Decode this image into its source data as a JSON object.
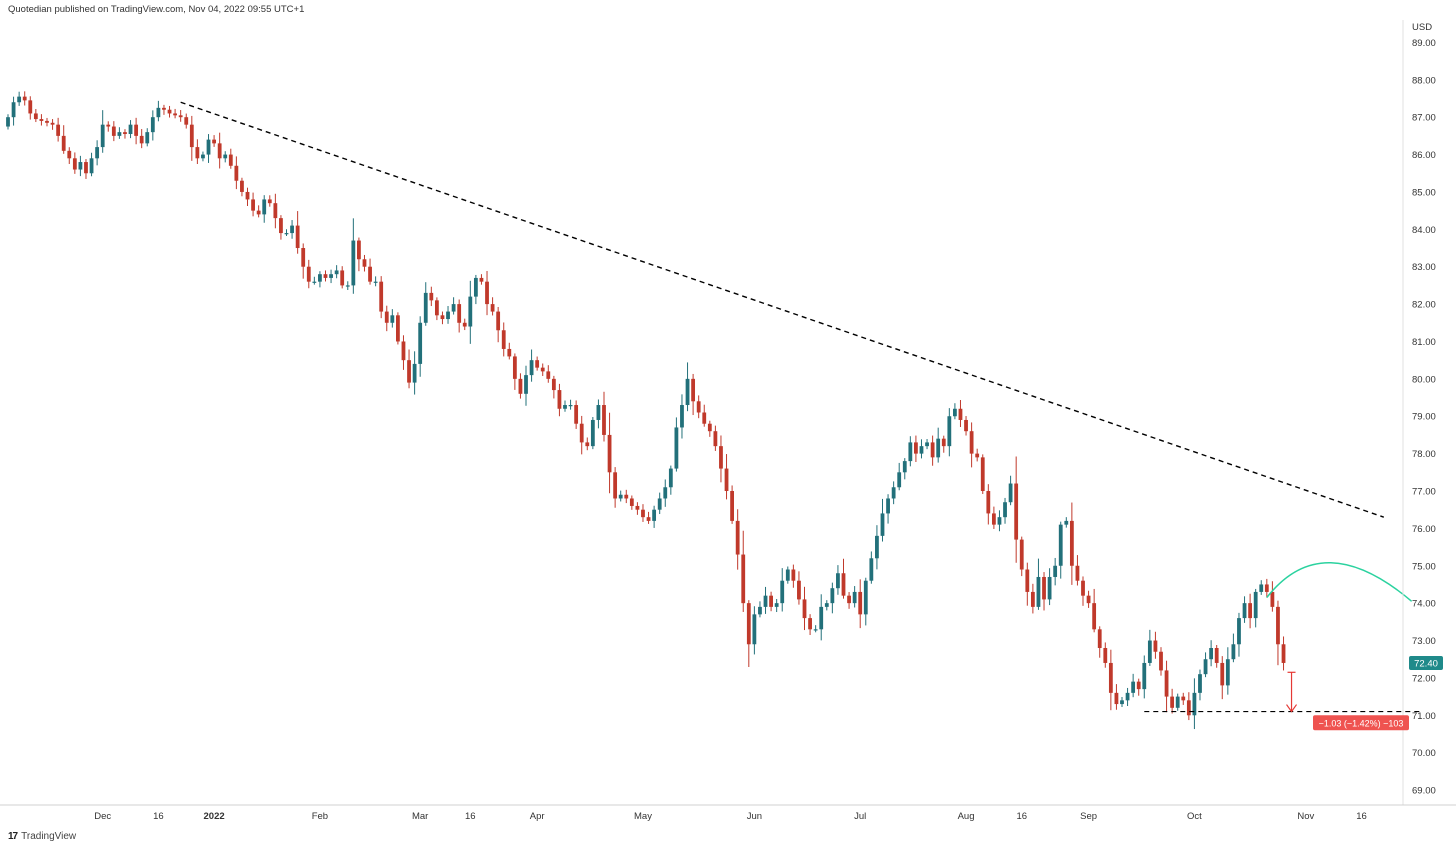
{
  "header": {
    "text": "Quotedian published on TradingView.com, Nov 04, 2022 09:55 UTC+1"
  },
  "brand": {
    "logo": "17",
    "label": "TradingView"
  },
  "colors": {
    "up": "#22707a",
    "down": "#c0392b",
    "trendline": "#000000",
    "arc": "#2bd29f",
    "last_price_bg": "#1f8a8a",
    "change_bg": "#ef5350",
    "arrow": "#e53935"
  },
  "chart_data": {
    "type": "candlestick",
    "currency_label": "USD",
    "ylim": [
      68.6,
      89.6
    ],
    "y_ticks": [
      {
        "value": 89.0,
        "label": "89.00"
      },
      {
        "value": 88.0,
        "label": "88.00"
      },
      {
        "value": 87.0,
        "label": "87.00"
      },
      {
        "value": 86.0,
        "label": "86.00"
      },
      {
        "value": 85.0,
        "label": "85.00"
      },
      {
        "value": 84.0,
        "label": "84.00"
      },
      {
        "value": 83.0,
        "label": "83.00"
      },
      {
        "value": 82.0,
        "label": "82.00"
      },
      {
        "value": 81.0,
        "label": "81.00"
      },
      {
        "value": 80.0,
        "label": "80.00"
      },
      {
        "value": 79.0,
        "label": "79.00"
      },
      {
        "value": 78.0,
        "label": "78.00"
      },
      {
        "value": 77.0,
        "label": "77.00"
      },
      {
        "value": 76.0,
        "label": "76.00"
      },
      {
        "value": 75.0,
        "label": "75.00"
      },
      {
        "value": 74.0,
        "label": "74.00"
      },
      {
        "value": 73.0,
        "label": "73.00"
      },
      {
        "value": 72.0,
        "label": "72.00"
      },
      {
        "value": 71.0,
        "label": "71.00"
      },
      {
        "value": 70.0,
        "label": "70.00"
      },
      {
        "value": 69.0,
        "label": "69.00"
      }
    ],
    "x_ticks": [
      {
        "label": "Dec",
        "bar": 17,
        "bold": false
      },
      {
        "label": "16",
        "bar": 27,
        "bold": false
      },
      {
        "label": "2022",
        "bar": 37,
        "bold": true
      },
      {
        "label": "Feb",
        "bar": 56,
        "bold": false
      },
      {
        "label": "Mar",
        "bar": 74,
        "bold": false
      },
      {
        "label": "16",
        "bar": 83,
        "bold": false
      },
      {
        "label": "Apr",
        "bar": 95,
        "bold": false
      },
      {
        "label": "May",
        "bar": 114,
        "bold": false
      },
      {
        "label": "Jun",
        "bar": 134,
        "bold": false
      },
      {
        "label": "Jul",
        "bar": 153,
        "bold": false
      },
      {
        "label": "Aug",
        "bar": 172,
        "bold": false
      },
      {
        "label": "16",
        "bar": 182,
        "bold": false
      },
      {
        "label": "Sep",
        "bar": 194,
        "bold": false
      },
      {
        "label": "Oct",
        "bar": 213,
        "bold": false
      },
      {
        "label": "Nov",
        "bar": 233,
        "bold": false
      },
      {
        "label": "16",
        "bar": 243,
        "bold": false
      }
    ],
    "closes": [
      87.0,
      87.4,
      87.55,
      87.45,
      87.1,
      86.95,
      86.9,
      86.85,
      86.8,
      86.5,
      86.1,
      85.9,
      85.6,
      85.8,
      85.5,
      85.9,
      86.2,
      86.8,
      86.75,
      86.5,
      86.6,
      86.55,
      86.8,
      86.5,
      86.3,
      86.6,
      87.0,
      87.25,
      87.2,
      87.1,
      87.05,
      87.0,
      86.8,
      86.2,
      85.9,
      86.0,
      86.4,
      86.3,
      85.9,
      86.0,
      85.7,
      85.3,
      85.0,
      84.8,
      84.5,
      84.4,
      84.8,
      84.7,
      84.3,
      83.9,
      83.9,
      84.1,
      83.5,
      83.0,
      82.6,
      82.6,
      82.8,
      82.7,
      82.8,
      82.9,
      82.5,
      82.5,
      83.7,
      83.2,
      83.0,
      82.6,
      82.6,
      81.8,
      81.5,
      81.7,
      81.0,
      80.5,
      79.9,
      80.4,
      81.5,
      82.3,
      82.1,
      81.7,
      81.6,
      81.8,
      82.0,
      81.5,
      81.4,
      82.2,
      82.7,
      82.6,
      82.0,
      81.8,
      81.3,
      80.8,
      80.6,
      80.0,
      79.6,
      80.1,
      80.5,
      80.3,
      80.2,
      80.0,
      79.7,
      79.2,
      79.3,
      79.3,
      78.8,
      78.3,
      78.2,
      78.9,
      79.3,
      78.5,
      77.5,
      76.8,
      76.9,
      76.8,
      76.6,
      76.5,
      76.3,
      76.2,
      76.5,
      76.8,
      77.1,
      77.6,
      78.7,
      79.3,
      80.0,
      79.4,
      79.1,
      78.8,
      78.6,
      78.2,
      77.6,
      77.0,
      76.2,
      75.3,
      74.0,
      72.9,
      73.7,
      73.9,
      74.2,
      73.9,
      74.0,
      74.6,
      74.9,
      74.6,
      74.1,
      73.6,
      73.3,
      73.3,
      73.9,
      74.0,
      74.4,
      74.8,
      74.2,
      74.0,
      74.3,
      73.7,
      74.6,
      75.2,
      75.8,
      76.4,
      76.8,
      77.1,
      77.5,
      77.8,
      78.3,
      78.0,
      78.2,
      78.3,
      77.9,
      78.4,
      78.2,
      79.0,
      79.2,
      78.9,
      78.6,
      78.0,
      77.9,
      77.0,
      76.4,
      76.1,
      76.3,
      76.7,
      77.2,
      75.7,
      74.9,
      74.3,
      73.9,
      74.7,
      74.1,
      74.7,
      75.0,
      76.1,
      76.2,
      75.0,
      74.6,
      74.2,
      74.0,
      73.3,
      72.8,
      72.4,
      71.6,
      71.3,
      71.4,
      71.6,
      71.9,
      71.7,
      72.4,
      73.0,
      72.7,
      72.2,
      71.5,
      71.2,
      71.5,
      71.4,
      71.0,
      71.6,
      72.1,
      72.5,
      72.8,
      72.4,
      71.8,
      72.5,
      72.9,
      73.6,
      74.0,
      73.6,
      74.3,
      74.5,
      74.3,
      73.9,
      72.9,
      72.4
    ],
    "dashed_trendline": {
      "from": [
        31,
        87.4
      ],
      "to": [
        247,
        76.3
      ]
    },
    "support_line": {
      "from": [
        204,
        71.1
      ],
      "to": [
        254,
        71.1
      ]
    },
    "arc": {
      "from": [
        226,
        74.15
      ],
      "peak": [
        237.5,
        75.08
      ],
      "to": [
        252,
        74.05
      ]
    },
    "arrow": {
      "from_value": 72.15,
      "to_value": 71.1
    },
    "last_price": {
      "value": 72.4,
      "label": "72.40"
    },
    "change_label": {
      "value": 70.8,
      "label": "−1.03 (−1.42%) −103"
    }
  }
}
